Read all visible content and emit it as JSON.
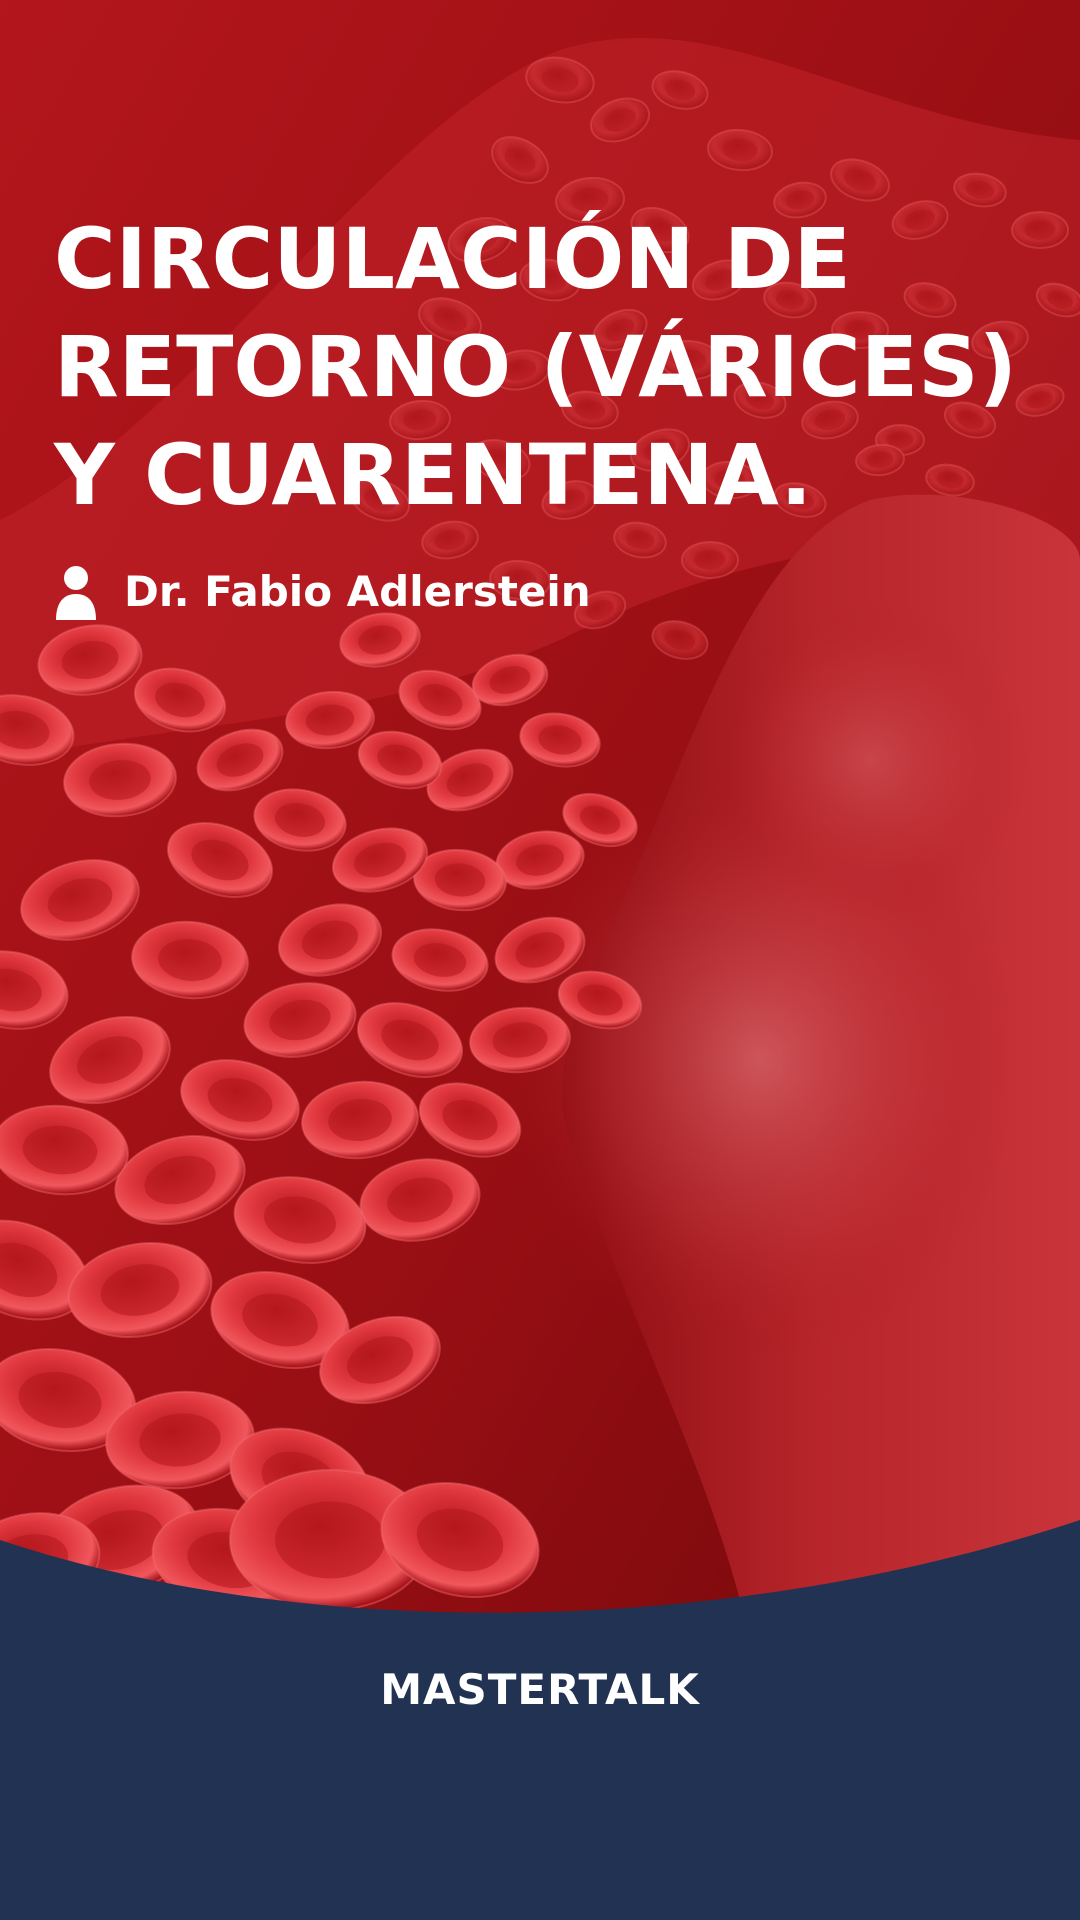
{
  "title_lines": [
    "CIRCULACIÓN DE",
    "RETORNO (VÁRICES)",
    "Y CUARENTENA."
  ],
  "author": {
    "icon": "user-icon",
    "name": "Dr. Fabio Adlerstein"
  },
  "brand": "MASTERTALK",
  "colors": {
    "background_red": "#a8141a",
    "blood_cell": "#d9262c",
    "footer_navy": "#223253",
    "text": "#ffffff"
  }
}
